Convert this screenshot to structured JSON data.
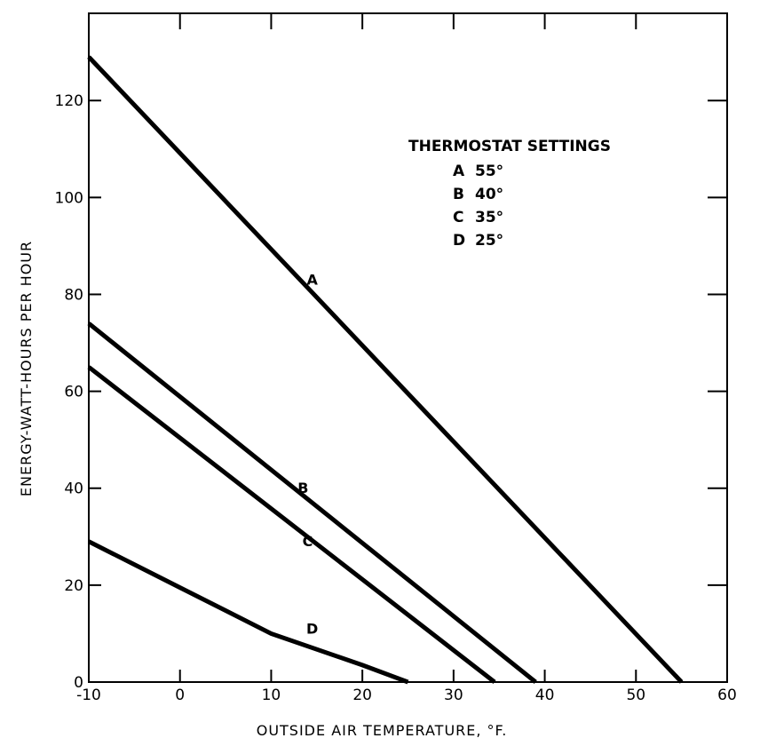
{
  "chart_data": {
    "type": "line",
    "title": "",
    "xlabel": "OUTSIDE AIR TEMPERATURE, °F.",
    "ylabel": "ENERGY-WATT-HOURS PER HOUR",
    "xlim": [
      -10,
      60
    ],
    "ylim": [
      0,
      138
    ],
    "x_ticks": [
      -10,
      0,
      10,
      20,
      30,
      40,
      50,
      60
    ],
    "x_tick_labels": [
      "-10",
      "0",
      "10",
      "20",
      "30",
      "40",
      "50",
      "60"
    ],
    "y_ticks": [
      0,
      20,
      40,
      60,
      80,
      100,
      120
    ],
    "y_tick_labels": [
      "0",
      "20",
      "40",
      "60",
      "80",
      "100",
      "120"
    ],
    "grid": false,
    "legend": {
      "title": "THERMOSTAT SETTINGS",
      "placement": "top-right",
      "entries": [
        {
          "key": "A",
          "value": "55°"
        },
        {
          "key": "B",
          "value": "40°"
        },
        {
          "key": "C",
          "value": "35°"
        },
        {
          "key": "D",
          "value": "25°"
        }
      ]
    },
    "series": [
      {
        "name": "A",
        "x": [
          -10,
          55
        ],
        "y": [
          129,
          0
        ],
        "label_at": [
          14.5,
          82
        ]
      },
      {
        "name": "B",
        "x": [
          -10,
          39
        ],
        "y": [
          74,
          0
        ],
        "label_at": [
          13.5,
          39
        ]
      },
      {
        "name": "C",
        "x": [
          -10,
          34.5
        ],
        "y": [
          65,
          0
        ],
        "label_at": [
          14,
          28
        ]
      },
      {
        "name": "D",
        "x": [
          -10,
          0,
          10,
          20,
          25
        ],
        "y": [
          29,
          19.5,
          10,
          3.5,
          0
        ],
        "label_at": [
          14.5,
          10
        ]
      }
    ]
  }
}
